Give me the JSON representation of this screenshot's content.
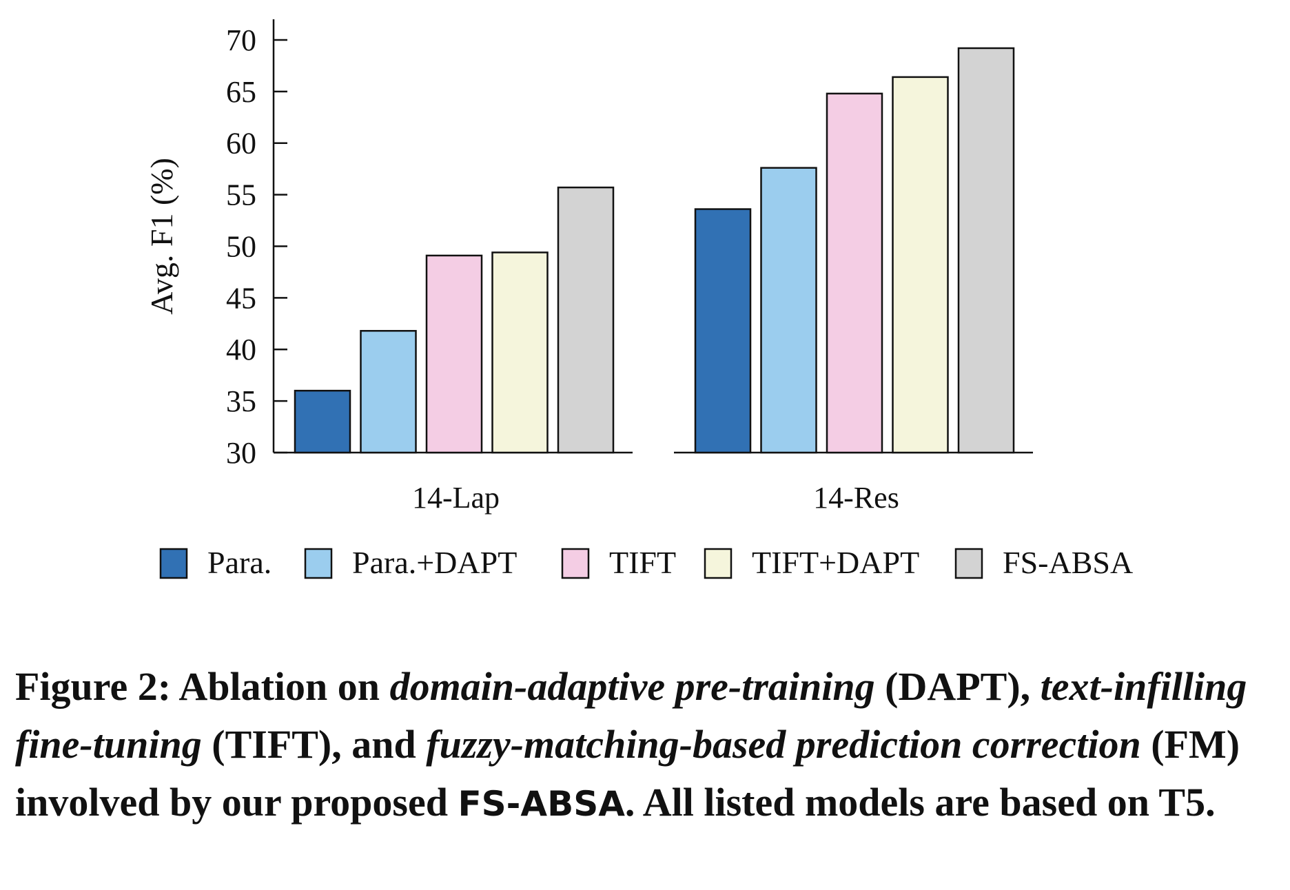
{
  "chart_data": {
    "type": "bar",
    "title": "",
    "xlabel": "",
    "ylabel": "Avg. F1 (%)",
    "ylim": [
      30,
      72
    ],
    "yticks": [
      30,
      35,
      40,
      45,
      50,
      55,
      60,
      65,
      70
    ],
    "categories": [
      "14-Lap",
      "14-Res"
    ],
    "series": [
      {
        "name": "Para.",
        "color": "#3171b4",
        "values": [
          36.0,
          53.6
        ]
      },
      {
        "name": "Para.+DAPT",
        "color": "#9bcdee",
        "values": [
          41.8,
          57.6
        ]
      },
      {
        "name": "TIFT",
        "color": "#f4cde4",
        "values": [
          49.1,
          64.8
        ]
      },
      {
        "name": "TIFT+DAPT",
        "color": "#f5f5dc",
        "values": [
          49.4,
          66.4
        ]
      },
      {
        "name": "FS-ABSA",
        "color": "#d3d3d3",
        "values": [
          55.7,
          69.2
        ]
      }
    ],
    "legend_position": "bottom",
    "grid": false
  },
  "caption": {
    "label": "Figure 2: Ablation on ",
    "dapt_term": "domain-adaptive pre-training",
    "dapt_abbr": " (DAPT),",
    "tift_term": "text-infilling fine-tuning",
    "tift_abbr": " (TIFT), and ",
    "fm_term": "fuzzy-matching-based prediction correction",
    "fm_abbr": " (FM) involved by our proposed ",
    "system": "FS-ABSA",
    "tail": ". All listed models are based on T5."
  }
}
